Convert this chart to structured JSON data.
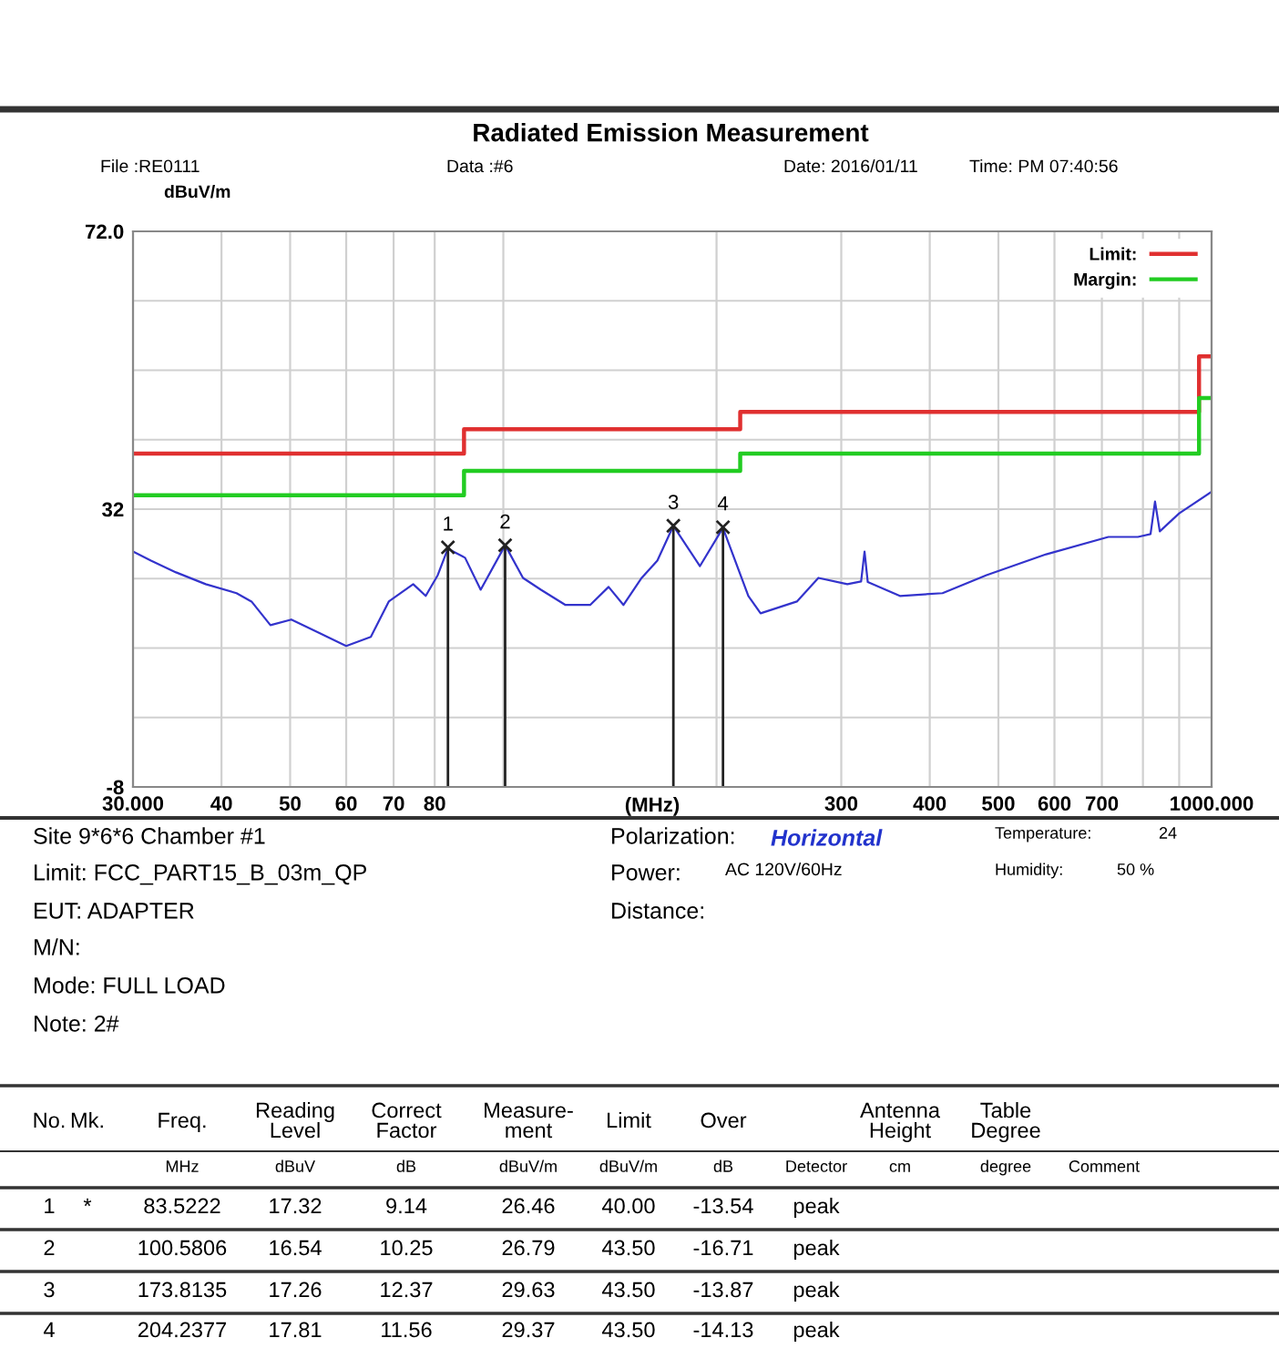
{
  "chart_data": {
    "type": "line",
    "title": "Radiated Emission Measurement",
    "xlabel": "(MHz)",
    "ylabel": "dBuV/m",
    "log": "x",
    "grid": true,
    "legend": "top right",
    "line_style": "solid",
    "xlim": [
      30,
      1000
    ],
    "ylim": [
      -8,
      72
    ],
    "xticks": [
      {
        "value": 30,
        "label": "30.000"
      },
      40,
      50,
      60,
      70,
      80,
      {
        "value": 100,
        "label": null
      },
      {
        "value": 200,
        "label": null
      },
      300,
      400,
      500,
      600,
      700,
      {
        "value": 800,
        "label": null
      },
      {
        "value": 900,
        "label": null
      },
      {
        "value": 1000,
        "label": "1000.000"
      }
    ],
    "yticks": [
      {
        "value": 72,
        "label": "72.0"
      },
      {
        "value": 62,
        "label": null
      },
      {
        "value": 52,
        "label": null
      },
      {
        "value": 42,
        "label": null
      },
      32,
      {
        "value": 22,
        "label": null
      },
      {
        "value": 12,
        "label": null
      },
      {
        "value": 2,
        "label": null
      },
      -8
    ],
    "series": [
      {
        "color": "#3333cc",
        "x": [
          30,
          31.8,
          34.5,
          38,
          42,
          44.1,
          46.9,
          50.2,
          54.4,
          60,
          65,
          68.9,
          74.6,
          77.7,
          80.8,
          83.5,
          88.3,
          92.9,
          100.6,
          106.6,
          113,
          122.4,
          132.6,
          140.8,
          147.8,
          156.8,
          165,
          173.8,
          189.5,
          204.2,
          221.8,
          230.8,
          259.7,
          278.5,
          306,
          320,
          323.6,
          327,
          363,
          417,
          481,
          584,
          715,
          787,
          820,
          832,
          845,
          900,
          996
        ],
        "values": [
          25.9,
          24.6,
          22.9,
          21.2,
          19.9,
          18.7,
          15.3,
          16.1,
          14.4,
          12.3,
          13.6,
          18.7,
          21.2,
          19.5,
          22.5,
          26.3,
          25.0,
          20.4,
          26.8,
          22.1,
          20.4,
          18.2,
          18.2,
          20.8,
          18.2,
          22.1,
          24.6,
          29.6,
          23.8,
          29.3,
          19.5,
          17.0,
          18.7,
          22.1,
          21.2,
          21.6,
          25.9,
          21.5,
          19.5,
          19.9,
          22.5,
          25.5,
          28.0,
          28.0,
          28.4,
          33.1,
          28.8,
          31.4,
          34.4
        ]
      },
      {
        "type": "step",
        "name": "Limit:",
        "color": "#e03030",
        "x": [
          30,
          88,
          216,
          960,
          1000
        ],
        "values": [
          40,
          43.5,
          46,
          54,
          54
        ]
      },
      {
        "type": "step",
        "name": "Margin:",
        "color": "#22cc22",
        "x": [
          30,
          88,
          216,
          960,
          1000
        ],
        "values": [
          34,
          37.5,
          40,
          48,
          48
        ]
      },
      {
        "type": "lollipop",
        "color": "#222222",
        "marker": "cross",
        "x": [
          83.5222,
          100.5806,
          173.8135,
          204.2377
        ],
        "values": [
          26.5,
          26.8,
          29.6,
          29.4
        ]
      }
    ],
    "annotations": [
      {
        "text": "1",
        "x": 83.5222,
        "y": 26.5
      },
      {
        "text": "2",
        "x": 100.5806,
        "y": 26.8
      },
      {
        "text": "3",
        "x": 173.8135,
        "y": 29.6
      },
      {
        "text": "4",
        "x": 204.2377,
        "y": 29.4
      },
      "File :RE0111",
      "Data :#6",
      "Date: 2016/01/11",
      "Time: PM 07:40:56",
      "Site 9*6*6 Chamber #1",
      "Limit: FCC_PART15_B_03m_QP",
      "EUT: ADAPTER",
      "M/N:",
      "Mode: FULL LOAD",
      "Note: 2#",
      "Polarization:",
      "Horizontal",
      "Power:",
      "AC 120V/60Hz",
      "Distance:",
      "Temperature:",
      "24",
      "Humidity:",
      "50 %",
      "No.",
      "Mk.",
      "Freq.",
      "Reading\nLevel",
      "Correct\nFactor",
      "Measure-\nment",
      "Limit",
      "Over",
      "Antenna\nHeight",
      "Table\nDegree",
      "MHz",
      "dBuV",
      "dB",
      "dBuV/m",
      "dBuV/m",
      "dB",
      "Detector",
      "cm",
      "degree",
      "Comment",
      "1",
      "*",
      "83.5222",
      "17.32",
      "9.14",
      "26.46",
      "40.00",
      "-13.54",
      "peak",
      "2",
      "100.5806",
      "16.54",
      "10.25",
      "26.79",
      "43.50",
      "-16.71",
      "peak",
      "3",
      "173.8135",
      "17.26",
      "12.37",
      "29.63",
      "43.50",
      "-13.87",
      "peak",
      "4",
      "204.2377",
      "17.81",
      "11.56",
      "29.37",
      "43.50",
      "-14.13",
      "peak"
    ]
  }
}
